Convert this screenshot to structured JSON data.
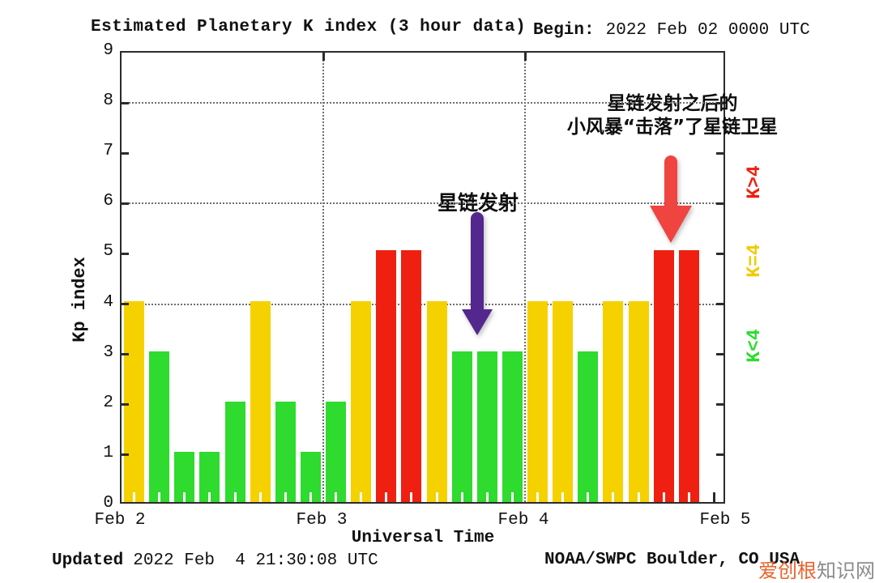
{
  "header": {
    "title": "Estimated Planetary K index (3 hour data)",
    "begin_label": "Begin:",
    "begin_value": "2022 Feb 02 0000 UTC"
  },
  "chart_data": {
    "type": "bar",
    "title": "Estimated Planetary K index (3 hour data)",
    "xlabel": "Universal Time",
    "ylabel": "Kp index",
    "ylim": [
      0,
      9
    ],
    "yticks": [
      0,
      1,
      2,
      3,
      4,
      5,
      6,
      7,
      8,
      9
    ],
    "grid_y": [
      4,
      6,
      8
    ],
    "grid": "dotted",
    "legend_position": "right-rotated",
    "day_labels": [
      "Feb 2",
      "Feb 3",
      "Feb 4",
      "Feb 5"
    ],
    "slots_per_day": 8,
    "hours_per_slot": 3,
    "values": [
      4,
      3,
      1,
      1,
      2,
      4,
      2,
      1,
      2,
      4,
      5,
      5,
      4,
      3,
      3,
      3,
      4,
      4,
      3,
      4,
      4,
      5,
      5
    ],
    "color_rule": "green K<4, yellow K=4, red K>4",
    "colors": {
      "below_4": "#2EDB2E",
      "equal_4": "#F5D100",
      "above_4": "#EF2011"
    }
  },
  "legend": [
    {
      "label": "K>4",
      "color": "#EF2011"
    },
    {
      "label": "K=4",
      "color": "#F0CB00"
    },
    {
      "label": "K<4",
      "color": "#2EDB2E"
    }
  ],
  "annotations": {
    "launch": {
      "text": "星链发射",
      "arrow_color": "#54278E"
    },
    "storm": {
      "line1": "星链发射之后的",
      "line2": "小风暴“击落”了星链卫星",
      "arrow_color": "#EF4440"
    }
  },
  "footer": {
    "updated_label": "Updated",
    "updated_value": "2022 Feb  4 21:30:08 UTC",
    "source": "NOAA/SWPC Boulder, CO USA"
  },
  "watermark": {
    "part1": "爱创根",
    "part2": "知识网",
    "color1": "#E8632C",
    "color2": "#8C8C8C"
  }
}
